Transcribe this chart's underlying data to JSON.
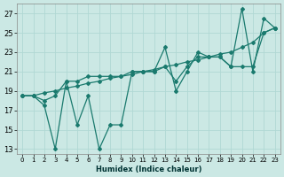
{
  "xlabel": "Humidex (Indice chaleur)",
  "background_color": "#cbe8e4",
  "grid_color": "#b0d8d4",
  "line_color": "#1a7a6e",
  "xlim": [
    -0.5,
    23.5
  ],
  "ylim": [
    12.5,
    28.0
  ],
  "xticks": [
    0,
    1,
    2,
    3,
    4,
    5,
    6,
    7,
    8,
    9,
    10,
    11,
    12,
    13,
    14,
    15,
    16,
    17,
    18,
    19,
    20,
    21,
    22,
    23
  ],
  "yticks": [
    13,
    15,
    17,
    19,
    21,
    23,
    25,
    27
  ],
  "line1": [
    18.5,
    18.5,
    18.8,
    19.0,
    19.3,
    19.5,
    19.8,
    20.0,
    20.3,
    20.5,
    20.7,
    21.0,
    21.2,
    21.5,
    21.7,
    22.0,
    22.2,
    22.5,
    22.8,
    23.0,
    23.5,
    24.0,
    25.0,
    25.5
  ],
  "line2": [
    18.5,
    18.5,
    18.0,
    18.5,
    20.0,
    20.0,
    20.5,
    20.5,
    20.5,
    20.5,
    21.0,
    21.0,
    21.0,
    21.5,
    20.0,
    21.5,
    22.5,
    22.5,
    22.5,
    21.5,
    21.5,
    21.5,
    25.0,
    25.5
  ],
  "line3": [
    18.5,
    18.5,
    17.5,
    13.0,
    20.0,
    15.5,
    18.5,
    13.0,
    15.5,
    15.5,
    21.0,
    21.0,
    21.0,
    23.5,
    19.0,
    21.0,
    23.0,
    22.5,
    22.5,
    21.5,
    27.5,
    21.0,
    26.5,
    25.5
  ]
}
